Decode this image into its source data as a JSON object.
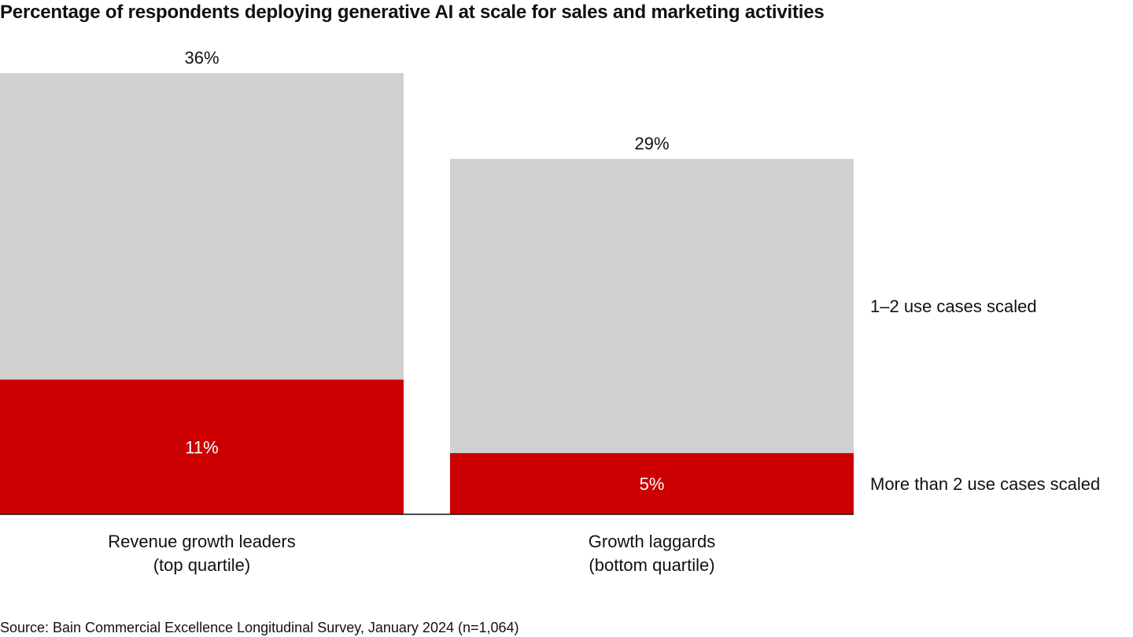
{
  "chart_data": {
    "type": "bar",
    "stacked": true,
    "title": "Percentage of respondents deploying generative AI at scale for sales and marketing activities",
    "categories": [
      [
        "Revenue growth leaders",
        "(top quartile)"
      ],
      [
        "Growth laggards",
        "(bottom quartile)"
      ]
    ],
    "series": [
      {
        "name": "More than 2 use cases scaled",
        "values": [
          11,
          5
        ],
        "labels": [
          "11%",
          "5%"
        ],
        "color": "#cc0000"
      },
      {
        "name": "1–2 use cases scaled",
        "values": [
          25,
          24
        ],
        "color": "#d1d1d1"
      }
    ],
    "totals": [
      36,
      29
    ],
    "total_labels": [
      "36%",
      "29%"
    ],
    "legend_placement": "right",
    "grid": false,
    "ylim": [
      0,
      36
    ]
  },
  "source": "Source: Bain Commercial Excellence Longitudinal Survey, January 2024 (n=1,064)"
}
